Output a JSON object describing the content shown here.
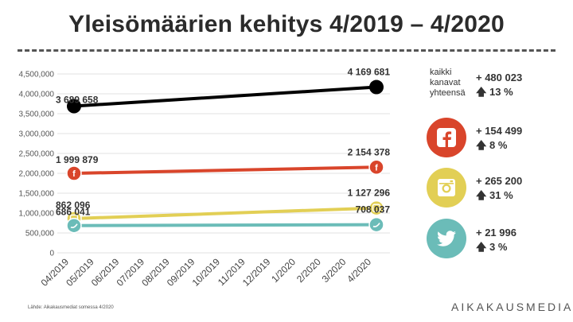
{
  "title": "Yleisömäärien kehitys 4/2019 – 4/2020",
  "chart_data": {
    "type": "line",
    "x": [
      "04/2019",
      "05/2019",
      "06/2019",
      "07/2019",
      "08/2019",
      "09/2019",
      "10/2019",
      "11/2019",
      "12/2019",
      "1/2020",
      "2/2020",
      "3/2020",
      "4/2020"
    ],
    "yticks": [
      0,
      500000,
      1000000,
      1500000,
      2000000,
      2500000,
      3000000,
      3500000,
      4000000,
      4500000
    ],
    "ytick_labels": [
      "0",
      "500,000",
      "1,000,000",
      "1,500,000",
      "2,000,000",
      "2,500,000",
      "3,000,000",
      "3,500,000",
      "4,000,000",
      "4,500,000"
    ],
    "ylim": [
      0,
      4500000
    ],
    "series": [
      {
        "name": "kaikki kanavat yhteensä",
        "color": "#000000",
        "start": 3689658,
        "end": 4169681,
        "start_label": "3 689 658",
        "end_label": "4 169 681"
      },
      {
        "name": "Facebook",
        "color": "#d9452b",
        "start": 1999879,
        "end": 2154378,
        "start_label": "1 999 879",
        "end_label": "2 154 378"
      },
      {
        "name": "Instagram",
        "color": "#e2cf55",
        "start": 862096,
        "end": 1127296,
        "start_label": "862 096",
        "end_label": "1 127 296"
      },
      {
        "name": "Twitter",
        "color": "#6bbcb8",
        "start": 686041,
        "end": 708037,
        "start_label": "686 041",
        "end_label": "708 037"
      }
    ]
  },
  "legend": {
    "total_label_lines": [
      "kaikki",
      "kanavat",
      "yhteensä"
    ],
    "total_change": "+ 480 023",
    "total_pct": "13 %",
    "facebook_change": "+ 154 499",
    "facebook_pct": "8 %",
    "instagram_change": "+ 265 200",
    "instagram_pct": "31 %",
    "twitter_change": "+ 21 996",
    "twitter_pct": "3 %",
    "arrow": "🡅"
  },
  "colors": {
    "facebook": "#d9452b",
    "instagram": "#e2cf55",
    "twitter": "#6bbcb8",
    "total": "#000000"
  },
  "source": "Lähde: Aikakausmediat somessa 4/2020",
  "brand": "AIKAKAUSMEDIA"
}
